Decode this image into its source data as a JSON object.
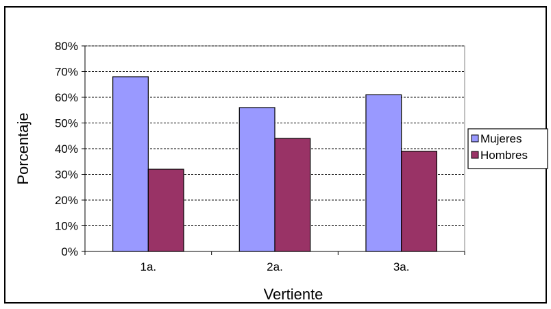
{
  "chart_data": {
    "type": "bar",
    "title": "",
    "xlabel": "Vertiente",
    "ylabel": "Porcentaje",
    "categories": [
      "1a.",
      "2a.",
      "3a."
    ],
    "series": [
      {
        "name": "Mujeres",
        "values": [
          68,
          56,
          61
        ],
        "color": "#9999FF"
      },
      {
        "name": "Hombres",
        "values": [
          32,
          44,
          39
        ],
        "color": "#993366"
      }
    ],
    "ylim": [
      0,
      80
    ],
    "ytick_step": 10,
    "ytick_format": "percent",
    "grid": true,
    "grid_style": "dashed",
    "legend_position": "right"
  }
}
